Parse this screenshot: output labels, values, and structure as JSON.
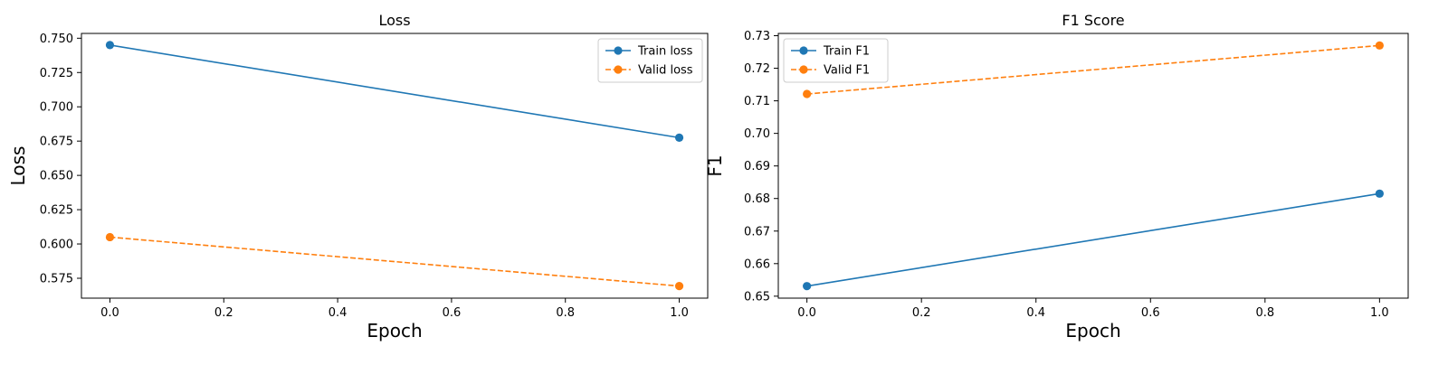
{
  "chart_data": [
    {
      "type": "line",
      "title": "Loss",
      "xlabel": "Epoch",
      "ylabel": "Loss",
      "x": [
        0,
        1
      ],
      "xlim": [
        -0.05,
        1.05
      ],
      "ylim": [
        0.5605,
        0.7535
      ],
      "xticks": [
        "0.0",
        "0.2",
        "0.4",
        "0.6",
        "0.8",
        "1.0"
      ],
      "yticks": [
        "0.575",
        "0.600",
        "0.625",
        "0.650",
        "0.675",
        "0.700",
        "0.725",
        "0.750"
      ],
      "grid": false,
      "legend_position": "top-right",
      "series": [
        {
          "name": "Train loss",
          "values": [
            0.745,
            0.6775
          ],
          "color": "#1f77b4",
          "linestyle": "solid",
          "marker": "circle"
        },
        {
          "name": "Valid loss",
          "values": [
            0.605,
            0.5693
          ],
          "color": "#ff7f0e",
          "linestyle": "dashed",
          "marker": "circle"
        }
      ]
    },
    {
      "type": "line",
      "title": "F1 Score",
      "xlabel": "Epoch",
      "ylabel": "F1",
      "x": [
        0,
        1
      ],
      "xlim": [
        -0.05,
        1.05
      ],
      "ylim": [
        0.6494,
        0.7307
      ],
      "xticks": [
        "0.0",
        "0.2",
        "0.4",
        "0.6",
        "0.8",
        "1.0"
      ],
      "yticks": [
        "0.65",
        "0.66",
        "0.67",
        "0.68",
        "0.69",
        "0.70",
        "0.71",
        "0.72",
        "0.73"
      ],
      "grid": false,
      "legend_position": "top-left",
      "series": [
        {
          "name": "Train F1",
          "values": [
            0.6531,
            0.6815
          ],
          "color": "#1f77b4",
          "linestyle": "solid",
          "marker": "circle"
        },
        {
          "name": "Valid F1",
          "values": [
            0.7121,
            0.727
          ],
          "color": "#ff7f0e",
          "linestyle": "dashed",
          "marker": "circle"
        }
      ]
    }
  ]
}
